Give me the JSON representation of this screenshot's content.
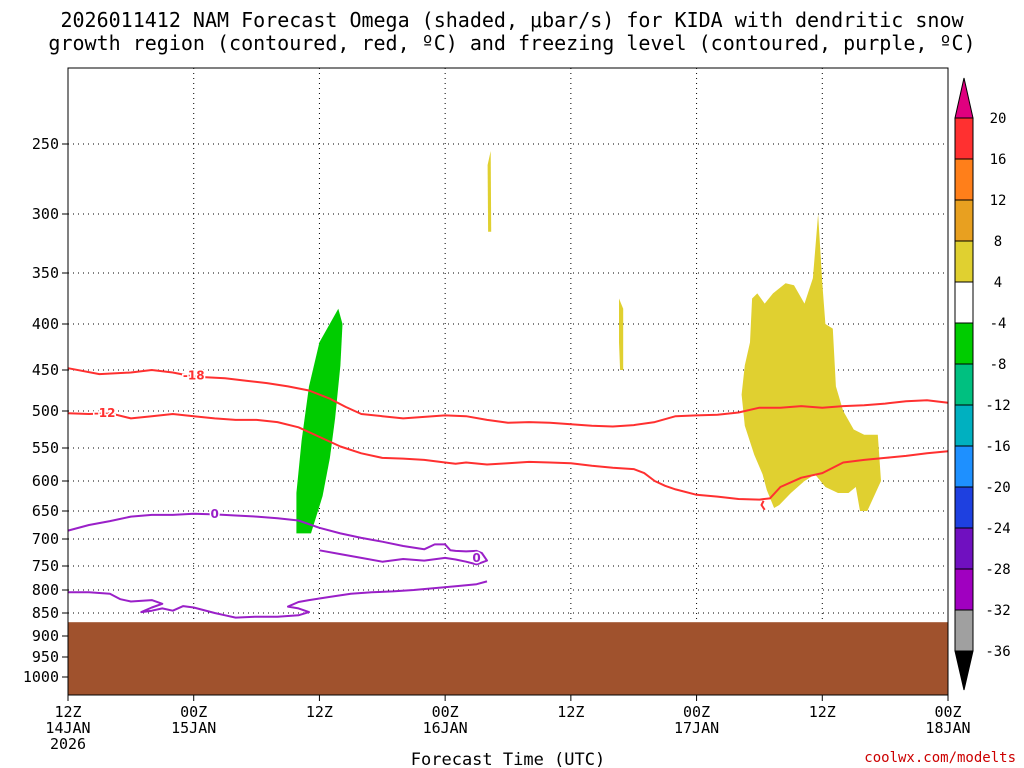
{
  "chart_data": {
    "type": "time-height cross section",
    "title_line1": "2026011412 NAM Forecast Omega (shaded, μbar/s) for KIDA with dendritic snow",
    "title_line2": "growth region (contoured, red, ºC) and freezing level (contoured, purple, ºC)",
    "xlabel": "Forecast Time (UTC)",
    "credit": "coolwx.com/modelts",
    "x_range_hours": [
      0,
      84
    ],
    "y_range_mb": [
      1050,
      200
    ],
    "pressure_ticks": [
      "250",
      "300",
      "350",
      "400",
      "450",
      "500",
      "550",
      "600",
      "650",
      "700",
      "750",
      "800",
      "850",
      "900",
      "950",
      "1000"
    ],
    "time_ticks": [
      {
        "h": 0,
        "l1": "12Z",
        "l2": "14JAN",
        "l3": "2026"
      },
      {
        "h": 12,
        "l1": "00Z",
        "l2": "15JAN",
        "l3": ""
      },
      {
        "h": 24,
        "l1": "12Z",
        "l2": "",
        "l3": ""
      },
      {
        "h": 36,
        "l1": "00Z",
        "l2": "16JAN",
        "l3": ""
      },
      {
        "h": 48,
        "l1": "12Z",
        "l2": "",
        "l3": ""
      },
      {
        "h": 60,
        "l1": "00Z",
        "l2": "17JAN",
        "l3": ""
      },
      {
        "h": 72,
        "l1": "12Z",
        "l2": "",
        "l3": ""
      },
      {
        "h": 84,
        "l1": "00Z",
        "l2": "18JAN",
        "l3": ""
      }
    ],
    "colorbar": {
      "ticks": [
        "20",
        "16",
        "12",
        "8",
        "4",
        "-4",
        "-8",
        "-12",
        "-16",
        "-20",
        "-24",
        "-28",
        "-32",
        "-36"
      ],
      "colors": [
        "#e0007f",
        "#ff3030",
        "#ff7f1a",
        "#e8a020",
        "#e0d030",
        "#ffffff",
        "#00cc00",
        "#00c080",
        "#00b0c0",
        "#1e90ff",
        "#1e40e0",
        "#7010c0",
        "#a000c0",
        "#a0a0a0",
        "#000000"
      ]
    },
    "underground_color": "#a0522d",
    "underground_top_mb": 870,
    "omega_regions": [
      {
        "name": "omega-green-region",
        "value": "-4 to -8",
        "color": "#00cc00",
        "points": [
          [
            22.5,
            690
          ],
          [
            23.2,
            690
          ],
          [
            24.3,
            625
          ],
          [
            25,
            565
          ],
          [
            25.5,
            510
          ],
          [
            26,
            445
          ],
          [
            26.2,
            400
          ],
          [
            25.8,
            385
          ],
          [
            24.0,
            420
          ],
          [
            23.0,
            470
          ],
          [
            22.3,
            540
          ],
          [
            21.8,
            620
          ],
          [
            21.8,
            690
          ]
        ]
      },
      {
        "name": "omega-yellow-region-top",
        "value": "4 to 8",
        "color": "#e0d030",
        "points": [
          [
            40.05,
            265
          ],
          [
            40.35,
            255
          ],
          [
            40.4,
            315
          ],
          [
            40.1,
            315
          ]
        ]
      },
      {
        "name": "omega-yellow-region-mid",
        "value": "4 to 8",
        "color": "#e0d030",
        "points": [
          [
            52.6,
            375
          ],
          [
            53.0,
            385
          ],
          [
            53.0,
            450
          ],
          [
            52.7,
            450
          ],
          [
            52.6,
            420
          ]
        ]
      },
      {
        "name": "omega-yellow-region-east",
        "value": "4 to 8",
        "color": "#e0d030",
        "points": [
          [
            65.3,
            375
          ],
          [
            65.8,
            370
          ],
          [
            66.5,
            380
          ],
          [
            67.3,
            370
          ],
          [
            68.5,
            360
          ],
          [
            69.3,
            362
          ],
          [
            70.3,
            380
          ],
          [
            71.1,
            355
          ],
          [
            71.6,
            300
          ],
          [
            72,
            360
          ],
          [
            72.3,
            400
          ],
          [
            73,
            405
          ],
          [
            73.3,
            470
          ],
          [
            74,
            500
          ],
          [
            75,
            525
          ],
          [
            76,
            532
          ],
          [
            77.3,
            532
          ],
          [
            77.6,
            600
          ],
          [
            76.3,
            650
          ],
          [
            75.6,
            650
          ],
          [
            75.2,
            610
          ],
          [
            74.5,
            620
          ],
          [
            73.5,
            620
          ],
          [
            72.3,
            610
          ],
          [
            71.3,
            590
          ],
          [
            70.3,
            600
          ],
          [
            69,
            620
          ],
          [
            67.9,
            640
          ],
          [
            67.4,
            645
          ],
          [
            66.7,
            615
          ],
          [
            66.3,
            590
          ],
          [
            65.5,
            560
          ],
          [
            64.6,
            520
          ],
          [
            64.3,
            480
          ],
          [
            64.6,
            445
          ],
          [
            65.1,
            420
          ]
        ]
      }
    ],
    "contours": [
      {
        "name": "isotherm-minus18",
        "label": "-18",
        "color": "#ff3030",
        "label_at": [
          12,
          457
        ],
        "points": [
          [
            0,
            448
          ],
          [
            3,
            455
          ],
          [
            6,
            453
          ],
          [
            8,
            450
          ],
          [
            10,
            453
          ],
          [
            12,
            458
          ],
          [
            15,
            460
          ],
          [
            17,
            463
          ],
          [
            19,
            466
          ],
          [
            21,
            470
          ],
          [
            23,
            475
          ],
          [
            25,
            485
          ],
          [
            26.5,
            495
          ],
          [
            28,
            504
          ],
          [
            30,
            507
          ],
          [
            32,
            510
          ],
          [
            34,
            508
          ],
          [
            36,
            506
          ],
          [
            38,
            507
          ],
          [
            40,
            512
          ],
          [
            42,
            516
          ],
          [
            44,
            515
          ],
          [
            46,
            516
          ],
          [
            48,
            518
          ],
          [
            50,
            520
          ],
          [
            52,
            521
          ],
          [
            54,
            519
          ],
          [
            56,
            515
          ],
          [
            58,
            507
          ],
          [
            60,
            506
          ],
          [
            62,
            505
          ],
          [
            64,
            502
          ],
          [
            66,
            496
          ],
          [
            68,
            496
          ],
          [
            70,
            494
          ],
          [
            72,
            496
          ],
          [
            74,
            494
          ],
          [
            76,
            493
          ],
          [
            78,
            491
          ],
          [
            80,
            488
          ],
          [
            82,
            487
          ],
          [
            84,
            490
          ]
        ]
      },
      {
        "name": "isotherm-minus12",
        "label": "-12",
        "color": "#ff3030",
        "label_at": [
          3.5,
          503
        ],
        "points": [
          [
            0,
            503
          ],
          [
            2,
            504
          ],
          [
            4,
            503
          ],
          [
            6,
            510
          ],
          [
            8,
            507
          ],
          [
            10,
            504
          ],
          [
            12,
            507
          ],
          [
            14,
            510
          ],
          [
            16,
            512
          ],
          [
            18,
            512
          ],
          [
            20,
            515
          ],
          [
            22,
            522
          ],
          [
            24,
            535
          ],
          [
            26,
            548
          ],
          [
            28,
            558
          ],
          [
            30,
            565
          ],
          [
            32,
            566
          ],
          [
            34,
            568
          ],
          [
            36,
            572
          ],
          [
            37,
            574
          ],
          [
            38,
            572
          ],
          [
            40,
            575
          ],
          [
            42,
            573
          ],
          [
            44,
            571
          ],
          [
            46,
            572
          ],
          [
            48,
            573
          ],
          [
            50,
            577
          ],
          [
            52,
            580
          ],
          [
            54,
            582
          ],
          [
            55,
            588
          ],
          [
            56,
            600
          ],
          [
            57,
            608
          ],
          [
            58,
            614
          ],
          [
            60,
            623
          ],
          [
            62,
            626
          ],
          [
            64,
            630
          ],
          [
            66,
            631
          ],
          [
            67,
            629
          ],
          [
            68,
            610
          ],
          [
            70,
            595
          ],
          [
            72,
            588
          ],
          [
            74,
            572
          ],
          [
            76,
            568
          ],
          [
            78,
            565
          ],
          [
            80,
            562
          ],
          [
            82,
            558
          ],
          [
            84,
            555
          ]
        ]
      },
      {
        "name": "freezing-level-upper",
        "label": "0",
        "color": "#9a20c8",
        "label_at": [
          14,
          655
        ],
        "points": [
          [
            0,
            685
          ],
          [
            2,
            675
          ],
          [
            4,
            668
          ],
          [
            6,
            660
          ],
          [
            8,
            657
          ],
          [
            10,
            657
          ],
          [
            12,
            655
          ],
          [
            14,
            656
          ],
          [
            16,
            658
          ],
          [
            18,
            660
          ],
          [
            20,
            663
          ],
          [
            22,
            667
          ],
          [
            24,
            680
          ],
          [
            26,
            690
          ],
          [
            28,
            698
          ],
          [
            30,
            705
          ],
          [
            32,
            713
          ],
          [
            34,
            719
          ],
          [
            35,
            710
          ],
          [
            36,
            710
          ],
          [
            36.5,
            721
          ],
          [
            37,
            722
          ],
          [
            38,
            723
          ],
          [
            39,
            722
          ],
          [
            39.5,
            726
          ],
          [
            40,
            740
          ],
          [
            39,
            747
          ],
          [
            38,
            742
          ],
          [
            37,
            738
          ],
          [
            36,
            735
          ],
          [
            34,
            740
          ],
          [
            32,
            737
          ],
          [
            30,
            742
          ],
          [
            28,
            735
          ],
          [
            26,
            728
          ],
          [
            24,
            721
          ]
        ]
      },
      {
        "name": "freezing-level-lower",
        "label": "0",
        "color": "#9a20c8",
        "label_at": [
          39,
          735
        ],
        "points": [
          [
            0,
            805
          ],
          [
            2,
            805
          ],
          [
            4,
            808
          ],
          [
            5,
            820
          ],
          [
            6,
            825
          ],
          [
            8,
            822
          ],
          [
            9,
            830
          ],
          [
            8,
            838
          ],
          [
            7,
            848
          ],
          [
            8,
            845
          ],
          [
            9,
            840
          ],
          [
            10,
            845
          ],
          [
            11,
            835
          ],
          [
            12,
            838
          ],
          [
            14,
            850
          ],
          [
            15,
            855
          ],
          [
            16,
            860
          ],
          [
            18,
            858
          ],
          [
            20,
            858
          ],
          [
            22,
            855
          ],
          [
            23,
            848
          ],
          [
            22,
            840
          ],
          [
            21,
            836
          ],
          [
            22,
            826
          ],
          [
            23,
            822
          ],
          [
            25,
            815
          ],
          [
            27,
            808
          ],
          [
            29,
            805
          ],
          [
            31,
            803
          ],
          [
            33,
            800
          ],
          [
            35,
            796
          ],
          [
            37,
            792
          ],
          [
            39,
            788
          ],
          [
            40,
            782
          ]
        ]
      },
      {
        "name": "isotherm-minus12-hook",
        "label": "",
        "color": "#ff3030",
        "label_at": [],
        "points": [
          [
            66.5,
            648
          ],
          [
            66.2,
            640
          ],
          [
            66.4,
            633
          ]
        ]
      }
    ]
  }
}
